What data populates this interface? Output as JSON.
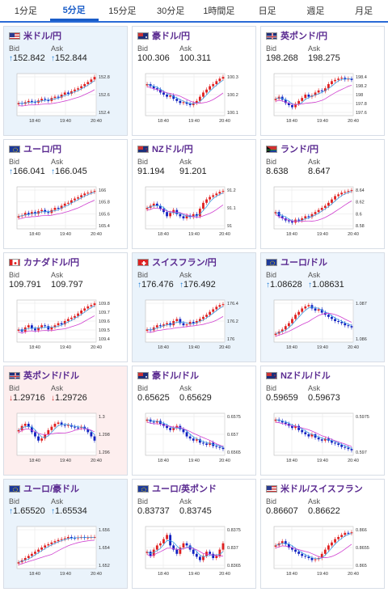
{
  "tabs": [
    {
      "label": "1分足",
      "active": false
    },
    {
      "label": "5分足",
      "active": true
    },
    {
      "label": "15分足",
      "active": false
    },
    {
      "label": "30分足",
      "active": false
    },
    {
      "label": "1時間足",
      "active": false
    },
    {
      "label": "日足",
      "active": false
    },
    {
      "label": "週足",
      "active": false
    },
    {
      "label": "月足",
      "active": false
    }
  ],
  "labels": {
    "bid": "Bid",
    "ask": "Ask"
  },
  "x_ticks": [
    "18:40",
    "19:40",
    "20:40"
  ],
  "colors": {
    "up": "#e02020",
    "down": "#1020c0",
    "ma_short": "#3ca0e6",
    "ma_long": "#d040d0",
    "title": "#5a2a90"
  },
  "cards": [
    {
      "pair": "米ドル/円",
      "flag": "us-flag-icon",
      "dir": "up",
      "bid": "152.842",
      "ask": "152.844",
      "ticks": [
        "152.8",
        "152.6",
        "152.4"
      ],
      "trend": [
        0.3,
        0.28,
        0.32,
        0.35,
        0.33,
        0.31,
        0.36,
        0.4,
        0.38,
        0.35,
        0.42,
        0.45,
        0.43,
        0.5,
        0.55,
        0.52,
        0.58,
        0.62,
        0.65,
        0.7,
        0.75,
        0.8,
        0.86,
        0.92
      ],
      "bg": "selected"
    },
    {
      "pair": "豪ドル/円",
      "flag": "au-flag-icon",
      "dir": "none",
      "bid": "100.306",
      "ask": "100.311",
      "ticks": [
        "100.3",
        "100.2",
        "100.1"
      ],
      "trend": [
        0.75,
        0.7,
        0.65,
        0.62,
        0.55,
        0.5,
        0.45,
        0.48,
        0.4,
        0.35,
        0.3,
        0.32,
        0.28,
        0.25,
        0.3,
        0.35,
        0.45,
        0.55,
        0.62,
        0.7,
        0.75,
        0.82,
        0.88,
        0.92
      ],
      "bg": ""
    },
    {
      "pair": "英ポンド/円",
      "flag": "gb-flag-icon",
      "dir": "none",
      "bid": "198.268",
      "ask": "198.275",
      "ticks": [
        "198.4",
        "198.2",
        "198",
        "197.8",
        "197.6"
      ],
      "trend": [
        0.4,
        0.45,
        0.38,
        0.3,
        0.25,
        0.2,
        0.28,
        0.35,
        0.42,
        0.5,
        0.45,
        0.48,
        0.55,
        0.6,
        0.58,
        0.65,
        0.75,
        0.82,
        0.85,
        0.88,
        0.9,
        0.86,
        0.88,
        0.85
      ],
      "bg": ""
    },
    {
      "pair": "ユーロ/円",
      "flag": "eu-flag-icon",
      "dir": "up",
      "bid": "166.041",
      "ask": "166.045",
      "ticks": [
        "166",
        "165.8",
        "165.6",
        "165.4"
      ],
      "trend": [
        0.3,
        0.32,
        0.38,
        0.35,
        0.4,
        0.36,
        0.42,
        0.45,
        0.4,
        0.38,
        0.45,
        0.5,
        0.48,
        0.55,
        0.6,
        0.62,
        0.68,
        0.72,
        0.75,
        0.8,
        0.84,
        0.86,
        0.88,
        0.9
      ],
      "bg": ""
    },
    {
      "pair": "NZドル/円",
      "flag": "nz-flag-icon",
      "dir": "none",
      "bid": "91.194",
      "ask": "91.201",
      "ticks": [
        "91.2",
        "91.1",
        "91"
      ],
      "trend": [
        0.5,
        0.55,
        0.6,
        0.55,
        0.48,
        0.4,
        0.3,
        0.38,
        0.45,
        0.35,
        0.3,
        0.25,
        0.32,
        0.28,
        0.35,
        0.3,
        0.48,
        0.62,
        0.7,
        0.76,
        0.8,
        0.84,
        0.88,
        0.9
      ],
      "bg": ""
    },
    {
      "pair": "ランド/円",
      "flag": "za-flag-icon",
      "dir": "none",
      "bid": "8.638",
      "ask": "8.647",
      "ticks": [
        "8.64",
        "8.62",
        "8.6",
        "8.58"
      ],
      "trend": [
        0.4,
        0.3,
        0.25,
        0.2,
        0.18,
        0.15,
        0.22,
        0.2,
        0.25,
        0.3,
        0.28,
        0.35,
        0.4,
        0.45,
        0.5,
        0.55,
        0.62,
        0.7,
        0.78,
        0.82,
        0.86,
        0.88,
        0.9,
        0.92
      ],
      "bg": ""
    },
    {
      "pair": "カナダドル/円",
      "flag": "ca-flag-icon",
      "dir": "none",
      "bid": "109.791",
      "ask": "109.797",
      "ticks": [
        "109.8",
        "109.7",
        "109.6",
        "109.5",
        "109.4"
      ],
      "trend": [
        0.3,
        0.25,
        0.35,
        0.4,
        0.32,
        0.28,
        0.35,
        0.4,
        0.38,
        0.3,
        0.35,
        0.4,
        0.45,
        0.42,
        0.5,
        0.55,
        0.58,
        0.62,
        0.68,
        0.75,
        0.8,
        0.85,
        0.88,
        0.92
      ],
      "bg": ""
    },
    {
      "pair": "スイスフラン/円",
      "flag": "ch-flag-icon",
      "dir": "up",
      "bid": "176.476",
      "ask": "176.492",
      "ticks": [
        "176.4",
        "176.2",
        "176"
      ],
      "trend": [
        0.3,
        0.28,
        0.35,
        0.4,
        0.38,
        0.42,
        0.45,
        0.4,
        0.5,
        0.55,
        0.45,
        0.4,
        0.42,
        0.48,
        0.45,
        0.5,
        0.55,
        0.6,
        0.65,
        0.72,
        0.78,
        0.84,
        0.88,
        0.9
      ],
      "bg": "selected"
    },
    {
      "pair": "ユーロ/ドル",
      "flag": "eu-flag-icon",
      "dir": "up",
      "bid": "1.08628",
      "ask": "1.08631",
      "ticks": [
        "1.087",
        "1.086"
      ],
      "trend": [
        0.2,
        0.25,
        0.3,
        0.38,
        0.45,
        0.55,
        0.65,
        0.72,
        0.8,
        0.85,
        0.88,
        0.8,
        0.75,
        0.78,
        0.7,
        0.65,
        0.6,
        0.55,
        0.5,
        0.48,
        0.45,
        0.4,
        0.38,
        0.35
      ],
      "bg": "up-bg"
    },
    {
      "pair": "英ポンド/ドル",
      "flag": "gb-flag-icon",
      "dir": "down",
      "bid": "1.29716",
      "ask": "1.29726",
      "ticks": [
        "1.3",
        "1.298",
        "1.296"
      ],
      "trend": [
        0.6,
        0.7,
        0.75,
        0.68,
        0.55,
        0.45,
        0.35,
        0.4,
        0.5,
        0.6,
        0.68,
        0.75,
        0.78,
        0.72,
        0.7,
        0.72,
        0.68,
        0.66,
        0.65,
        0.68,
        0.62,
        0.55,
        0.45,
        0.35
      ],
      "bg": "down-bg"
    },
    {
      "pair": "豪ドル/ドル",
      "flag": "au-flag-icon",
      "dir": "none",
      "bid": "0.65625",
      "ask": "0.65629",
      "ticks": [
        "0.6575",
        "0.657",
        "0.6565"
      ],
      "trend": [
        0.85,
        0.8,
        0.78,
        0.82,
        0.75,
        0.7,
        0.65,
        0.6,
        0.65,
        0.7,
        0.62,
        0.55,
        0.45,
        0.4,
        0.35,
        0.38,
        0.3,
        0.28,
        0.25,
        0.3,
        0.22,
        0.2,
        0.18,
        0.15
      ],
      "bg": ""
    },
    {
      "pair": "NZドル/ドル",
      "flag": "nz-flag-icon",
      "dir": "none",
      "bid": "0.59659",
      "ask": "0.59673",
      "ticks": [
        "0.5975",
        "0.597"
      ],
      "trend": [
        0.85,
        0.82,
        0.78,
        0.75,
        0.7,
        0.65,
        0.7,
        0.6,
        0.55,
        0.5,
        0.45,
        0.5,
        0.42,
        0.38,
        0.35,
        0.4,
        0.35,
        0.3,
        0.28,
        0.25,
        0.2,
        0.18,
        0.15,
        0.12
      ],
      "bg": ""
    },
    {
      "pair": "ユーロ/豪ドル",
      "flag": "eu-flag-icon",
      "dir": "up",
      "bid": "1.65520",
      "ask": "1.65534",
      "ticks": [
        "1.656",
        "1.654",
        "1.652"
      ],
      "trend": [
        0.15,
        0.2,
        0.25,
        0.3,
        0.35,
        0.4,
        0.45,
        0.5,
        0.55,
        0.58,
        0.62,
        0.65,
        0.68,
        0.7,
        0.72,
        0.75,
        0.73,
        0.72,
        0.74,
        0.75,
        0.73,
        0.74,
        0.75,
        0.75
      ],
      "bg": "selected"
    },
    {
      "pair": "ユーロ/英ポンド",
      "flag": "eu-flag-icon",
      "dir": "none",
      "bid": "0.83737",
      "ask": "0.83745",
      "ticks": [
        "0.8375",
        "0.837",
        "0.8365"
      ],
      "trend": [
        0.4,
        0.3,
        0.45,
        0.55,
        0.6,
        0.7,
        0.8,
        0.55,
        0.45,
        0.35,
        0.5,
        0.6,
        0.55,
        0.45,
        0.35,
        0.28,
        0.2,
        0.3,
        0.4,
        0.35,
        0.25,
        0.3,
        0.45,
        0.6
      ],
      "bg": ""
    },
    {
      "pair": "米ドル/スイスフラン",
      "flag": "us-flag-icon",
      "dir": "none",
      "bid": "0.86607",
      "ask": "0.86622",
      "ticks": [
        "0.866",
        "0.8655",
        "0.865"
      ],
      "trend": [
        0.55,
        0.6,
        0.65,
        0.58,
        0.5,
        0.45,
        0.4,
        0.35,
        0.3,
        0.28,
        0.25,
        0.2,
        0.22,
        0.25,
        0.35,
        0.45,
        0.55,
        0.62,
        0.7,
        0.75,
        0.8,
        0.85,
        0.84,
        0.86
      ],
      "bg": ""
    }
  ]
}
